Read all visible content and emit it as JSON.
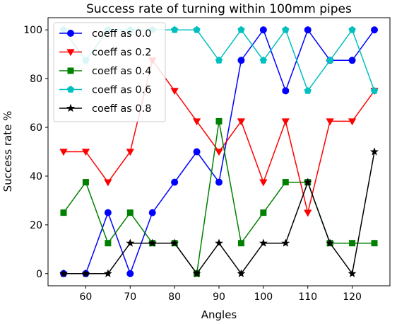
{
  "chart_data": {
    "type": "line",
    "title": "Success rate of turning within 100mm pipes",
    "xlabel": "Angles",
    "ylabel": "Success rate %",
    "x": [
      55,
      60,
      65,
      70,
      75,
      80,
      85,
      90,
      95,
      100,
      105,
      110,
      115,
      120,
      125
    ],
    "xlim": [
      51.5,
      128.5
    ],
    "ylim": [
      -5,
      105
    ],
    "xticks": [
      60,
      70,
      80,
      90,
      100,
      110,
      120
    ],
    "yticks": [
      0,
      20,
      40,
      60,
      80,
      100
    ],
    "grid": false,
    "legend_position": "top-left",
    "series": [
      {
        "name": "coeff as 0.0",
        "color": "#0000ff",
        "marker": "circle",
        "values": [
          0,
          0,
          25,
          0,
          25,
          37.5,
          50,
          37.5,
          87.5,
          100,
          75,
          100,
          87.5,
          87.5,
          100
        ]
      },
      {
        "name": "coeff as 0.2",
        "color": "#ff0000",
        "marker": "triangle-down",
        "values": [
          50,
          50,
          37.5,
          50,
          87.5,
          75,
          62.5,
          50,
          62.5,
          37.5,
          62.5,
          25,
          62.5,
          62.5,
          75
        ]
      },
      {
        "name": "coeff as 0.4",
        "color": "#008000",
        "marker": "square",
        "values": [
          25,
          37.5,
          12.5,
          25,
          12.5,
          12.5,
          0,
          62.5,
          12.5,
          25,
          37.5,
          37.5,
          12.5,
          12.5,
          12.5
        ]
      },
      {
        "name": "coeff as 0.6",
        "color": "#00bfbf",
        "marker": "pentagon",
        "values": [
          100,
          87.5,
          100,
          100,
          100,
          100,
          100,
          87.5,
          100,
          87.5,
          100,
          75,
          87.5,
          100,
          75
        ]
      },
      {
        "name": "coeff as 0.8",
        "color": "#000000",
        "marker": "star",
        "values": [
          0,
          0,
          0,
          12.5,
          12.5,
          12.5,
          0,
          12.5,
          0,
          12.5,
          12.5,
          37.5,
          12.5,
          0,
          50
        ]
      }
    ]
  }
}
